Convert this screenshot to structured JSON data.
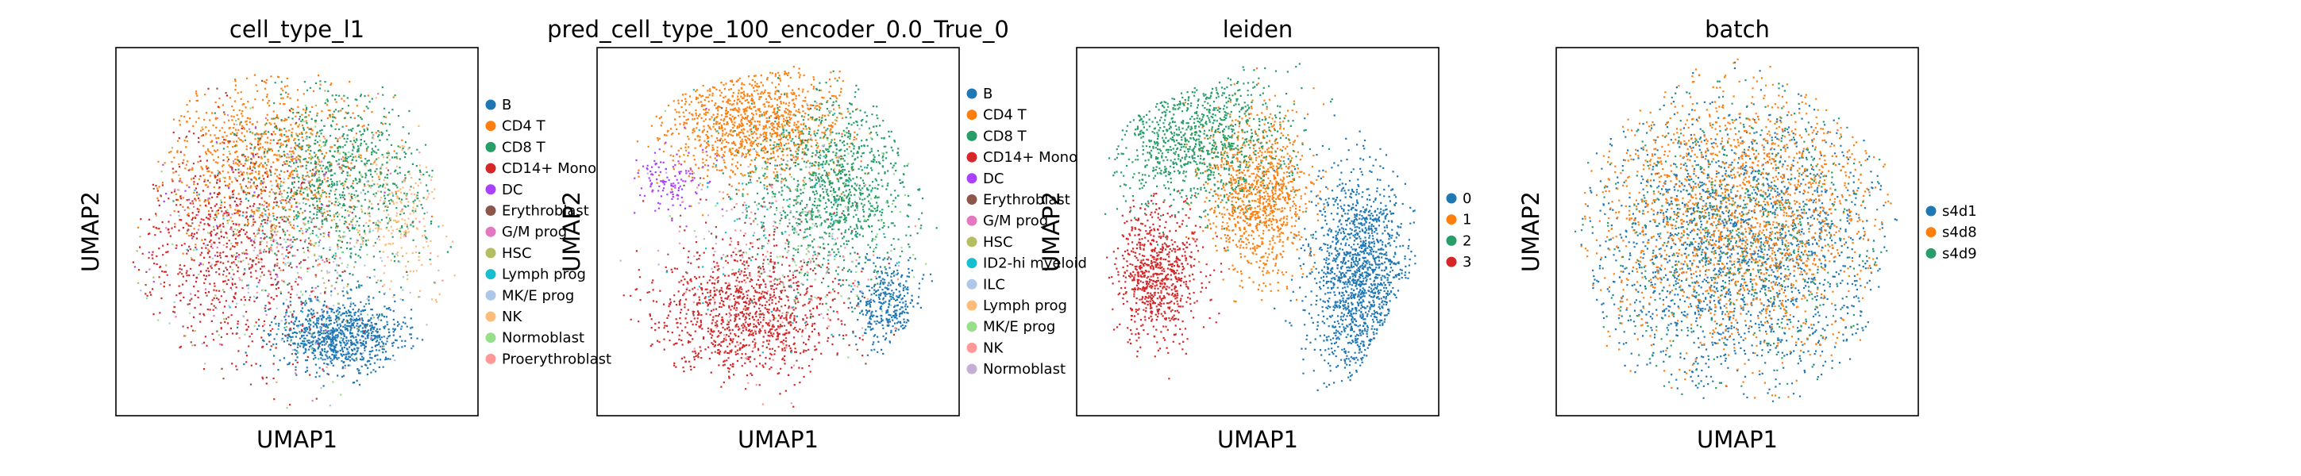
{
  "chart_data": [
    {
      "type": "scatter",
      "title": "cell_type_l1",
      "xlabel": "UMAP1",
      "ylabel": "UMAP2",
      "grid": false,
      "ticks": false,
      "legend_placement": "right outside",
      "legend": [
        {
          "label": "B",
          "color": "#1f77b4"
        },
        {
          "label": "CD4 T",
          "color": "#ff7f0e"
        },
        {
          "label": "CD8 T",
          "color": "#279e68"
        },
        {
          "label": "CD14+ Mono",
          "color": "#d62728"
        },
        {
          "label": "DC",
          "color": "#aa40fc"
        },
        {
          "label": "Erythroblast",
          "color": "#8c564b"
        },
        {
          "label": "G/M prog",
          "color": "#e377c2"
        },
        {
          "label": "HSC",
          "color": "#b5bd61"
        },
        {
          "label": "Lymph prog",
          "color": "#17becf"
        },
        {
          "label": "MK/E prog",
          "color": "#aec7e8"
        },
        {
          "label": "NK",
          "color": "#ffbb78"
        },
        {
          "label": "Normoblast",
          "color": "#98df8a"
        },
        {
          "label": "Proerythroblast",
          "color": "#ff9896"
        }
      ],
      "regions": [
        {
          "category": "B",
          "center": [
            0.62,
            0.78
          ],
          "spread": [
            0.18,
            0.1
          ],
          "weight": 0.22
        },
        {
          "category": "CD4 T",
          "center": [
            0.4,
            0.3
          ],
          "spread": [
            0.3,
            0.22
          ],
          "weight": 0.2
        },
        {
          "category": "CD8 T",
          "center": [
            0.62,
            0.35
          ],
          "spread": [
            0.25,
            0.25
          ],
          "weight": 0.2
        },
        {
          "category": "CD14+ Mono",
          "center": [
            0.3,
            0.55
          ],
          "spread": [
            0.25,
            0.3
          ],
          "weight": 0.16
        },
        {
          "category": "NK",
          "center": [
            0.78,
            0.45
          ],
          "spread": [
            0.15,
            0.2
          ],
          "weight": 0.05
        },
        {
          "category": "Erythroblast",
          "center": [
            0.45,
            0.5
          ],
          "spread": [
            0.35,
            0.35
          ],
          "weight": 0.04
        },
        {
          "category": "Normoblast",
          "center": [
            0.5,
            0.5
          ],
          "spread": [
            0.35,
            0.35
          ],
          "weight": 0.03
        },
        {
          "category": "MK/E prog",
          "center": [
            0.5,
            0.6
          ],
          "spread": [
            0.35,
            0.3
          ],
          "weight": 0.03
        },
        {
          "category": "G/M prog",
          "center": [
            0.4,
            0.5
          ],
          "spread": [
            0.35,
            0.35
          ],
          "weight": 0.02
        },
        {
          "category": "HSC",
          "center": [
            0.5,
            0.5
          ],
          "spread": [
            0.35,
            0.35
          ],
          "weight": 0.02
        },
        {
          "category": "Lymph prog",
          "center": [
            0.5,
            0.55
          ],
          "spread": [
            0.35,
            0.35
          ],
          "weight": 0.01
        },
        {
          "category": "DC",
          "center": [
            0.4,
            0.45
          ],
          "spread": [
            0.3,
            0.3
          ],
          "weight": 0.01
        },
        {
          "category": "Proerythroblast",
          "center": [
            0.5,
            0.5
          ],
          "spread": [
            0.35,
            0.35
          ],
          "weight": 0.01
        }
      ]
    },
    {
      "type": "scatter",
      "title": "pred_cell_type_100_encoder_0.0_True_0",
      "xlabel": "UMAP1",
      "ylabel": "UMAP2",
      "grid": false,
      "ticks": false,
      "legend_placement": "right outside",
      "legend": [
        {
          "label": "B",
          "color": "#1f77b4"
        },
        {
          "label": "CD4 T",
          "color": "#ff7f0e"
        },
        {
          "label": "CD8 T",
          "color": "#279e68"
        },
        {
          "label": "CD14+ Mono",
          "color": "#d62728"
        },
        {
          "label": "DC",
          "color": "#aa40fc"
        },
        {
          "label": "Erythroblast",
          "color": "#8c564b"
        },
        {
          "label": "G/M prog",
          "color": "#e377c2"
        },
        {
          "label": "HSC",
          "color": "#b5bd61"
        },
        {
          "label": "ID2-hi myeloid",
          "color": "#17becf"
        },
        {
          "label": "ILC",
          "color": "#aec7e8"
        },
        {
          "label": "Lymph prog",
          "color": "#ffbb78"
        },
        {
          "label": "MK/E prog",
          "color": "#98df8a"
        },
        {
          "label": "NK",
          "color": "#ff9896"
        },
        {
          "label": "Normoblast",
          "color": "#c5b0d5"
        }
      ],
      "regions": [
        {
          "category": "CD4 T",
          "center": [
            0.42,
            0.2
          ],
          "spread": [
            0.25,
            0.16
          ],
          "weight": 0.26
        },
        {
          "category": "CD8 T",
          "center": [
            0.65,
            0.38
          ],
          "spread": [
            0.22,
            0.24
          ],
          "weight": 0.25
        },
        {
          "category": "CD14+ Mono",
          "center": [
            0.4,
            0.72
          ],
          "spread": [
            0.25,
            0.18
          ],
          "weight": 0.25
        },
        {
          "category": "B",
          "center": [
            0.8,
            0.7
          ],
          "spread": [
            0.1,
            0.12
          ],
          "weight": 0.08
        },
        {
          "category": "DC",
          "center": [
            0.2,
            0.35
          ],
          "spread": [
            0.12,
            0.1
          ],
          "weight": 0.03
        },
        {
          "category": "Erythroblast",
          "center": [
            0.45,
            0.55
          ],
          "spread": [
            0.3,
            0.3
          ],
          "weight": 0.03
        },
        {
          "category": "MK/E prog",
          "center": [
            0.6,
            0.5
          ],
          "spread": [
            0.3,
            0.3
          ],
          "weight": 0.03
        },
        {
          "category": "NK",
          "center": [
            0.5,
            0.6
          ],
          "spread": [
            0.3,
            0.3
          ],
          "weight": 0.03
        },
        {
          "category": "ID2-hi myeloid",
          "center": [
            0.5,
            0.5
          ],
          "spread": [
            0.3,
            0.3
          ],
          "weight": 0.02
        },
        {
          "category": "Normoblast",
          "center": [
            0.5,
            0.5
          ],
          "spread": [
            0.3,
            0.3
          ],
          "weight": 0.02
        }
      ]
    },
    {
      "type": "scatter",
      "title": "leiden",
      "xlabel": "UMAP1",
      "ylabel": "UMAP2",
      "grid": false,
      "ticks": false,
      "legend_placement": "right outside",
      "legend": [
        {
          "label": "0",
          "color": "#1f77b4"
        },
        {
          "label": "1",
          "color": "#ff7f0e"
        },
        {
          "label": "2",
          "color": "#279e68"
        },
        {
          "label": "3",
          "color": "#d62728"
        }
      ],
      "regions": [
        {
          "category": "0",
          "center": [
            0.78,
            0.62
          ],
          "spread": [
            0.14,
            0.3
          ],
          "weight": 0.34
        },
        {
          "category": "1",
          "center": [
            0.5,
            0.4
          ],
          "spread": [
            0.14,
            0.22
          ],
          "weight": 0.24
        },
        {
          "category": "2",
          "center": [
            0.32,
            0.25
          ],
          "spread": [
            0.25,
            0.2
          ],
          "weight": 0.24
        },
        {
          "category": "3",
          "center": [
            0.22,
            0.62
          ],
          "spread": [
            0.12,
            0.18
          ],
          "weight": 0.18
        }
      ]
    },
    {
      "type": "scatter",
      "title": "batch",
      "xlabel": "UMAP1",
      "ylabel": "UMAP2",
      "grid": false,
      "ticks": false,
      "legend_placement": "right outside",
      "legend": [
        {
          "label": "s4d1",
          "color": "#1f77b4"
        },
        {
          "label": "s4d8",
          "color": "#ff7f0e"
        },
        {
          "label": "s4d9",
          "color": "#279e68"
        }
      ],
      "regions": [
        {
          "category": "s4d1",
          "center": [
            0.5,
            0.55
          ],
          "spread": [
            0.4,
            0.38
          ],
          "weight": 0.45
        },
        {
          "category": "s4d8",
          "center": [
            0.5,
            0.45
          ],
          "spread": [
            0.4,
            0.38
          ],
          "weight": 0.42
        },
        {
          "category": "s4d9",
          "center": [
            0.5,
            0.5
          ],
          "spread": [
            0.4,
            0.38
          ],
          "weight": 0.13
        }
      ]
    }
  ]
}
